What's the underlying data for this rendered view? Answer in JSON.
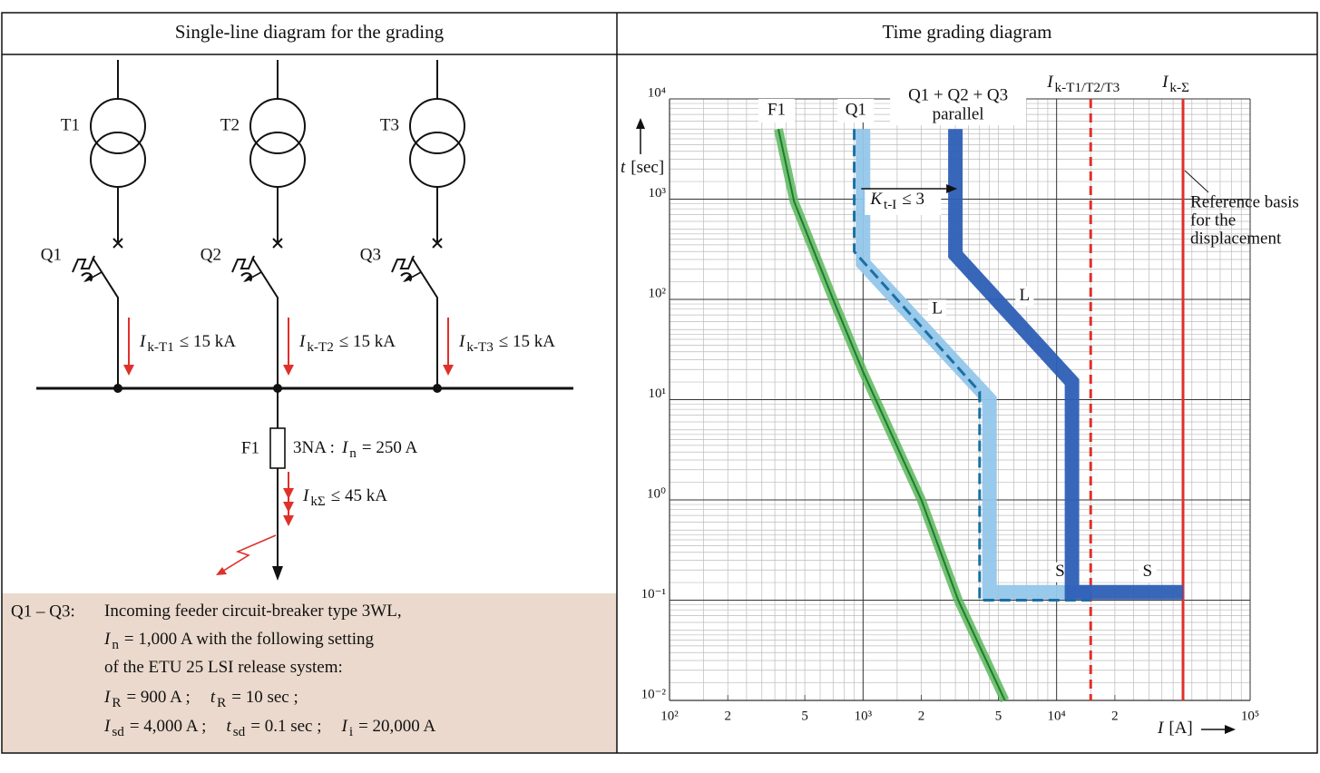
{
  "left": {
    "title": "Single-line diagram for the grading",
    "transformers": [
      "T1",
      "T2",
      "T3"
    ],
    "breakers": [
      "Q1",
      "Q2",
      "Q3"
    ],
    "currents": [
      {
        "sym": "I",
        "sub": "k-T1",
        "text": "≤ 15 kA"
      },
      {
        "sym": "I",
        "sub": "k-T2",
        "text": "≤ 15 kA"
      },
      {
        "sym": "I",
        "sub": "k-T3",
        "text": "≤ 15 kA"
      }
    ],
    "fuse": {
      "label": "F1",
      "parts": [
        {
          "text": "3NA :"
        },
        {
          "sym": "I",
          "sub": "n",
          "text": "= 250 A"
        }
      ]
    },
    "fault": {
      "sym": "I",
      "sub": "kΣ",
      "text": "≤ 45 kA"
    },
    "note": {
      "label": "Q1 – Q3:",
      "lines": [
        [
          {
            "text": "Incoming feeder circuit-breaker type 3WL,"
          }
        ],
        [
          {
            "sym": "I",
            "sub": "n",
            "text": "= 1,000 A with the following setting"
          }
        ],
        [
          {
            "text": "of the ETU 25 LSI release system:"
          }
        ],
        [
          {
            "sym": "I",
            "sub": "R",
            "text": "= 900 A ;"
          },
          {
            "sym": "t",
            "sub": "R",
            "text": "= 10 sec ;"
          }
        ],
        [
          {
            "sym": "I",
            "sub": "sd",
            "text": "= 4,000 A ;"
          },
          {
            "sym": "t",
            "sub": "sd",
            "text": "= 0.1 sec ;"
          },
          {
            "sym": "I",
            "sub": "i",
            "text": "= 20,000 A"
          }
        ]
      ]
    }
  },
  "right": {
    "title": "Time grading diagram",
    "chart": {
      "type": "line",
      "xscale": "log",
      "yscale": "log",
      "xlabel": {
        "sym": "I",
        "text": "[A]"
      },
      "ylabel": {
        "sym": "t",
        "text": "[sec]"
      },
      "xlim": [
        100,
        100000
      ],
      "ylim": [
        0.01,
        10000
      ],
      "xticks": [
        {
          "value": 100,
          "label": "10²"
        },
        {
          "value": 200,
          "label": "2"
        },
        {
          "value": 500,
          "label": "5"
        },
        {
          "value": 1000,
          "label": "10³"
        },
        {
          "value": 2000,
          "label": "2"
        },
        {
          "value": 5000,
          "label": "5"
        },
        {
          "value": 10000,
          "label": "10⁴"
        },
        {
          "value": 20000,
          "label": "2"
        },
        {
          "value": 100000,
          "label": "10⁵"
        }
      ],
      "yticks": [
        {
          "value": 0.01,
          "label": "10⁻²"
        },
        {
          "value": 0.1,
          "label": "10⁻¹"
        },
        {
          "value": 1,
          "label": "10⁰"
        },
        {
          "value": 10,
          "label": "10¹"
        },
        {
          "value": 100,
          "label": "10²"
        },
        {
          "value": 1000,
          "label": "10³"
        },
        {
          "value": 10000,
          "label": "10⁴"
        }
      ],
      "grid": true,
      "series": [
        {
          "name": "F1",
          "color": "#5cb85c",
          "line_color": "#1f7a32",
          "x": [
            365,
            440,
            700,
            1000,
            2000,
            3100,
            5400
          ],
          "values": [
            5000,
            950,
            100,
            19,
            1,
            0.1,
            0.01
          ]
        },
        {
          "name": "Q1",
          "color": "#93c6ea",
          "zones": [
            "L",
            "S"
          ],
          "x": [
            1000,
            1000,
            4500,
            4500,
            15000
          ],
          "values": [
            5000,
            230,
            10,
            0.12,
            0.12
          ],
          "setting": {
            "color": "#1a6fa3",
            "x": [
              900,
              900,
              4000,
              4000,
              15000
            ],
            "values": [
              5000,
              300,
              12,
              0.1,
              0.1
            ]
          }
        },
        {
          "name": "Q1 + Q2 + Q3",
          "subname": "parallel",
          "color": "#2d5fb6",
          "zones": [
            "L",
            "S"
          ],
          "x": [
            3000,
            3000,
            12000,
            12000,
            45000
          ],
          "values": [
            5000,
            280,
            15,
            0.12,
            0.12
          ]
        }
      ],
      "verticals": [
        {
          "label": {
            "sym": "I",
            "sub": "k-T1/T2/T3"
          },
          "x": 15000,
          "color": "#e0302a",
          "dashed": true
        },
        {
          "label": {
            "sym": "I",
            "sub": "k-Σ"
          },
          "x": 45000,
          "color": "#e0302a",
          "dashed": false
        }
      ],
      "annotation": {
        "sym": "K",
        "sub": "t-I",
        "text": "≤ 3"
      },
      "reference": [
        "Reference basis",
        "for the",
        "displacement"
      ]
    }
  }
}
